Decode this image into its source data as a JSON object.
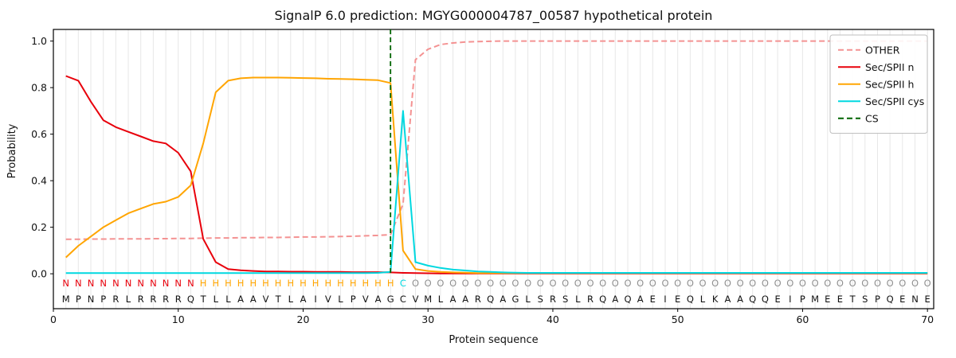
{
  "chart_data": {
    "type": "line",
    "title": "SignalP 6.0 prediction: MGYG000004787_00587 hypothetical protein",
    "xlabel": "Protein sequence",
    "ylabel": "Probability",
    "xlim": [
      0,
      70.5
    ],
    "ylim": [
      -0.15,
      1.05
    ],
    "x_ticks": [
      0,
      10,
      20,
      30,
      40,
      50,
      60,
      70
    ],
    "y_ticks": [
      "0.0",
      "0.2",
      "0.4",
      "0.6",
      "0.8",
      "1.0"
    ],
    "grid": "vertical-per-residue",
    "legend_position": "upper right",
    "sequence": "MPNPRLRRRRQTLLAAVTLAIVLPVAGCVMLAARQAGLSRSLRQAQAEIEQLKAAQQEIPMEETSPQENE",
    "region_labels": "NNNNNNNNNNNHHHHHHHHHHHHHHHHCOOOOOOOOOOOOOOOOOOOOOOOOOOOOOOOOOOOOOOOOOO",
    "colors": {
      "N": "#e8000b",
      "H": "#ffa502",
      "C": "#00d8e0",
      "O": "#909090",
      "grid": "#e7e7e7",
      "spine": "#000000"
    },
    "series": [
      {
        "name": "OTHER",
        "style": "dashed",
        "color": "#f49292",
        "values": [
          0.148,
          0.148,
          0.149,
          0.149,
          0.15,
          0.15,
          0.15,
          0.151,
          0.151,
          0.152,
          0.152,
          0.153,
          0.154,
          0.154,
          0.155,
          0.155,
          0.156,
          0.156,
          0.157,
          0.158,
          0.158,
          0.159,
          0.16,
          0.161,
          0.163,
          0.165,
          0.168,
          0.3,
          0.92,
          0.965,
          0.985,
          0.992,
          0.996,
          0.998,
          0.999,
          1,
          1,
          1,
          1,
          1,
          1,
          1,
          1,
          1,
          1,
          1,
          1,
          1,
          1,
          1,
          1,
          1,
          1,
          1,
          1,
          1,
          1,
          1,
          1,
          1,
          1,
          1,
          1,
          1,
          1,
          1,
          1,
          1,
          1,
          1
        ]
      },
      {
        "name": "Sec/SPII n",
        "style": "solid",
        "color": "#e8000b",
        "values": [
          0.85,
          0.83,
          0.74,
          0.66,
          0.63,
          0.61,
          0.59,
          0.57,
          0.56,
          0.52,
          0.44,
          0.15,
          0.05,
          0.02,
          0.015,
          0.012,
          0.01,
          0.01,
          0.009,
          0.009,
          0.008,
          0.008,
          0.008,
          0.007,
          0.007,
          0.007,
          0.006,
          0.004,
          0.003,
          0.002,
          0.001,
          0.001,
          0.001,
          0.001,
          0.001,
          0.001,
          0.001,
          0.001,
          0.001,
          0.001,
          0.001,
          0.001,
          0.001,
          0.001,
          0.001,
          0.001,
          0.001,
          0.001,
          0.001,
          0.001,
          0.001,
          0.001,
          0.001,
          0.001,
          0.001,
          0.001,
          0.001,
          0.001,
          0.001,
          0.001,
          0.001,
          0.001,
          0.001,
          0.001,
          0.001,
          0.001,
          0.001,
          0.001,
          0.001,
          0.001
        ]
      },
      {
        "name": "Sec/SPII h",
        "style": "solid",
        "color": "#ffa502",
        "values": [
          0.07,
          0.12,
          0.16,
          0.2,
          0.23,
          0.26,
          0.28,
          0.3,
          0.31,
          0.33,
          0.38,
          0.56,
          0.78,
          0.83,
          0.84,
          0.843,
          0.843,
          0.843,
          0.842,
          0.841,
          0.84,
          0.838,
          0.837,
          0.836,
          0.834,
          0.832,
          0.82,
          0.1,
          0.02,
          0.012,
          0.008,
          0.006,
          0.005,
          0.003,
          0.003,
          0.003,
          0.003,
          0.003,
          0.003,
          0.003,
          0.003,
          0.003,
          0.003,
          0.003,
          0.003,
          0.003,
          0.003,
          0.003,
          0.003,
          0.003,
          0.003,
          0.003,
          0.003,
          0.003,
          0.003,
          0.003,
          0.003,
          0.003,
          0.003,
          0.003,
          0.003,
          0.003,
          0.003,
          0.003,
          0.003,
          0.003,
          0.003,
          0.003,
          0.003,
          0.003
        ]
      },
      {
        "name": "Sec/SPII cys",
        "style": "solid",
        "color": "#00d8e0",
        "values": [
          0.003,
          0.003,
          0.003,
          0.003,
          0.003,
          0.003,
          0.003,
          0.003,
          0.003,
          0.003,
          0.003,
          0.003,
          0.003,
          0.003,
          0.003,
          0.003,
          0.003,
          0.003,
          0.003,
          0.003,
          0.003,
          0.003,
          0.003,
          0.003,
          0.003,
          0.004,
          0.008,
          0.7,
          0.05,
          0.035,
          0.025,
          0.018,
          0.014,
          0.01,
          0.008,
          0.006,
          0.005,
          0.004,
          0.004,
          0.004,
          0.004,
          0.004,
          0.004,
          0.004,
          0.004,
          0.004,
          0.004,
          0.004,
          0.004,
          0.004,
          0.004,
          0.004,
          0.004,
          0.004,
          0.004,
          0.004,
          0.004,
          0.004,
          0.004,
          0.004,
          0.004,
          0.004,
          0.004,
          0.004,
          0.004,
          0.004,
          0.004,
          0.004,
          0.004,
          0.004
        ]
      }
    ],
    "cs_marker": {
      "name": "CS",
      "style": "dashed-vertical",
      "color": "#006400",
      "position": 27
    },
    "legend": [
      {
        "label": "OTHER",
        "color": "#f49292",
        "dash": true
      },
      {
        "label": "Sec/SPII n",
        "color": "#e8000b",
        "dash": false
      },
      {
        "label": "Sec/SPII h",
        "color": "#ffa502",
        "dash": false
      },
      {
        "label": "Sec/SPII cys",
        "color": "#00d8e0",
        "dash": false
      },
      {
        "label": "CS",
        "color": "#006400",
        "dash": true
      }
    ]
  }
}
